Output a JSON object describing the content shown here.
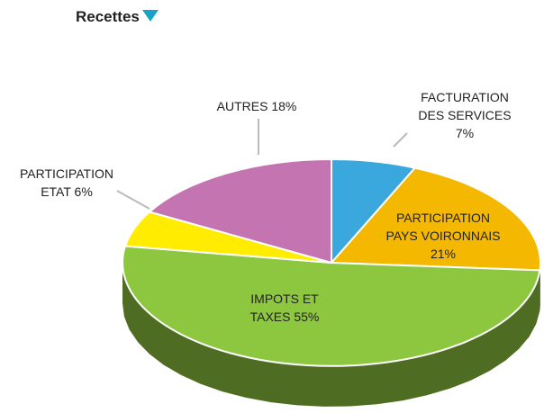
{
  "chart_data": {
    "type": "pie",
    "title": "Recettes",
    "categories": [
      "FACTURATION DES SERVICES",
      "PARTICIPATION PAYS VOIRONNAIS",
      "IMPOTS ET TAXES",
      "PARTICIPATION ETAT",
      "AUTRES"
    ],
    "values": [
      7,
      21,
      55,
      6,
      18
    ],
    "value_labels": [
      "7%",
      "21%",
      "55%",
      "6%",
      "18%"
    ],
    "colors": [
      "#3aa8dc",
      "#f5b800",
      "#8dc63f",
      "#ffec00",
      "#c474b0"
    ]
  }
}
